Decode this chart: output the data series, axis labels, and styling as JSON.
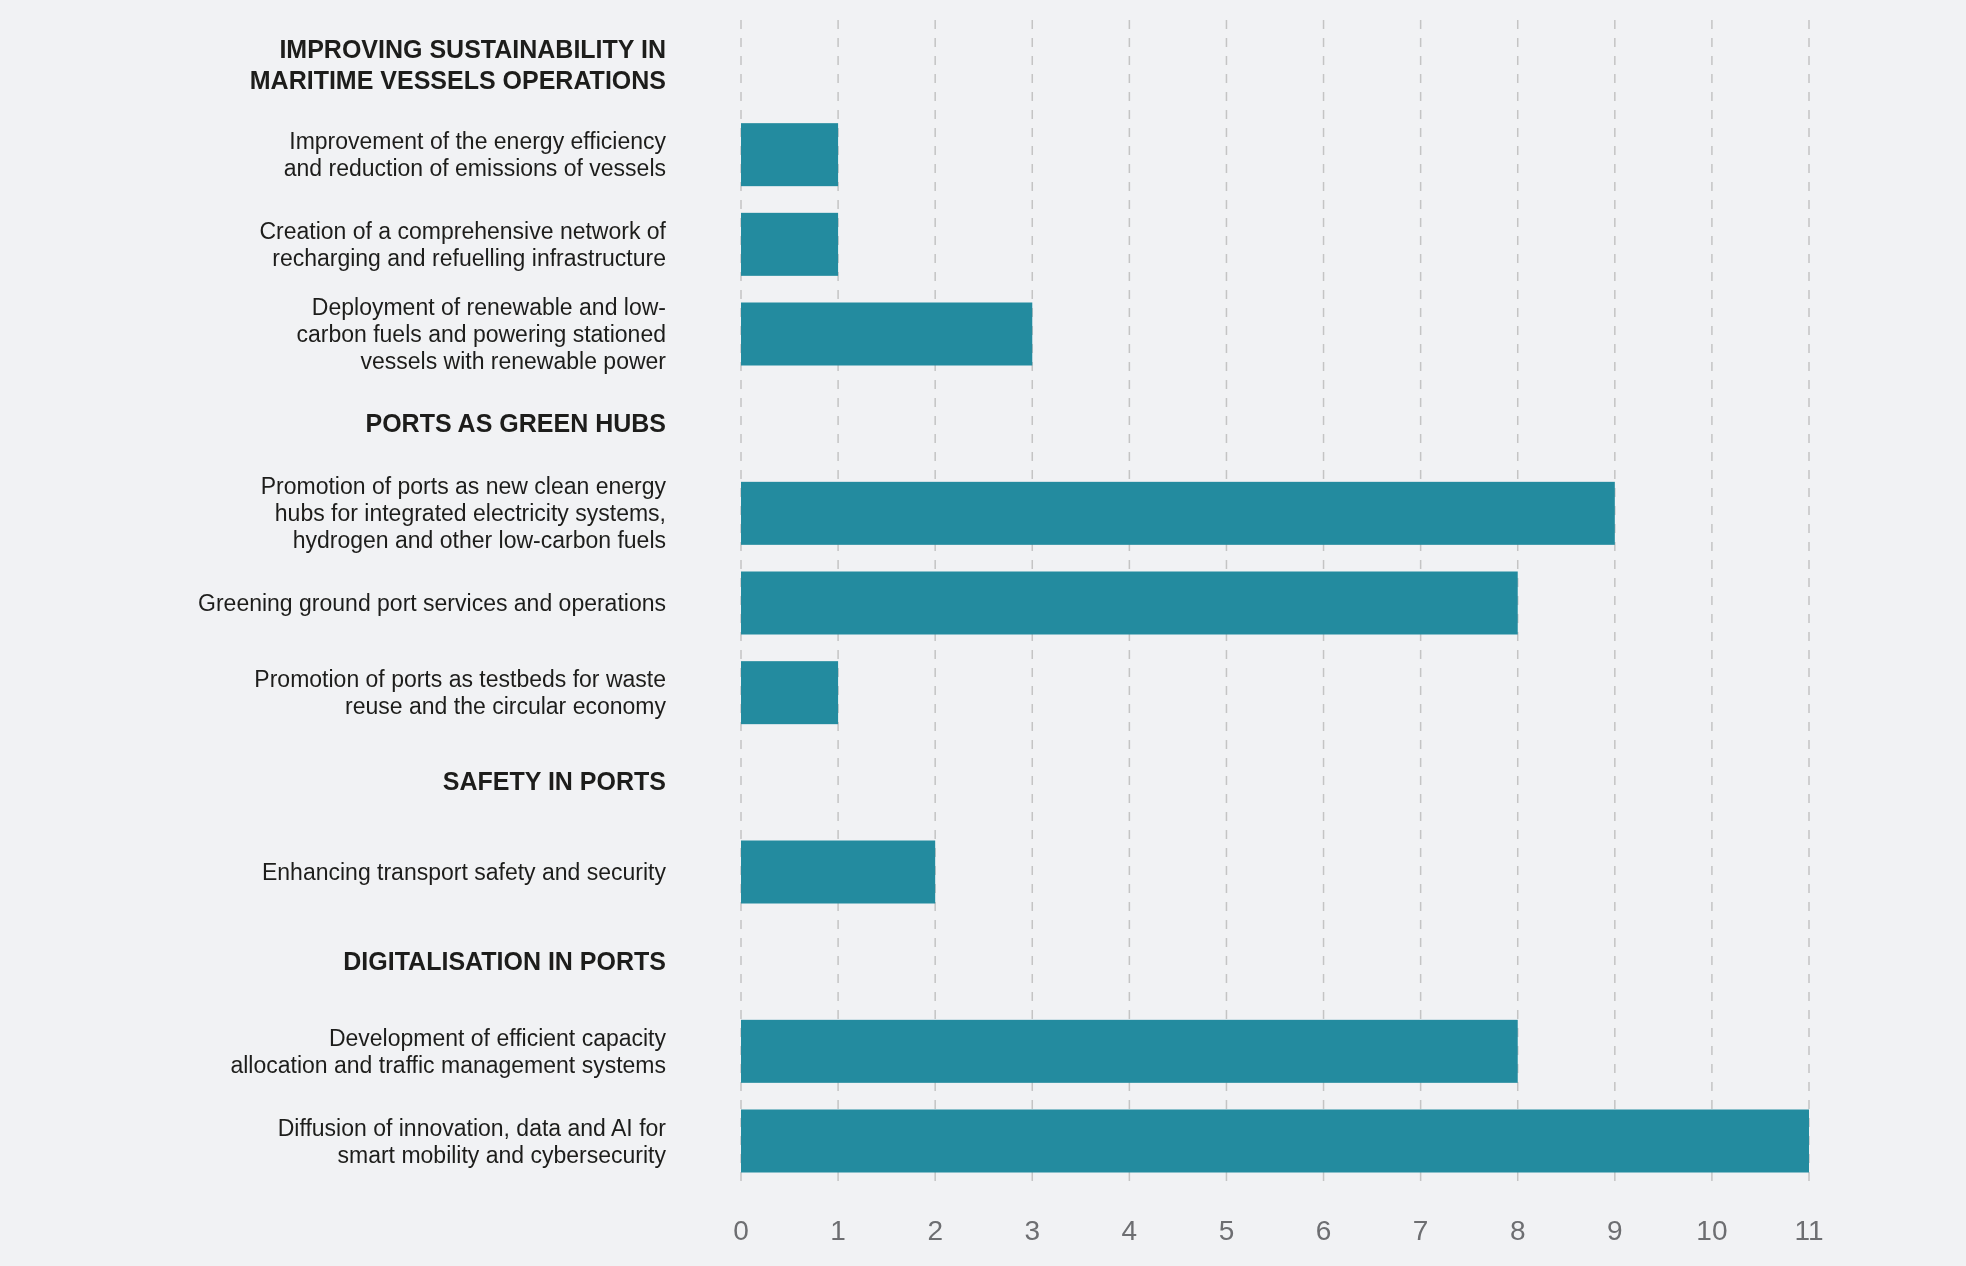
{
  "chart_data": {
    "type": "bar",
    "orientation": "horizontal",
    "categories": [
      "IMPROVING SUSTAINABILITY IN\nMARITIME VESSELS OPERATIONS",
      "Improvement of the energy efficiency\nand reduction of emissions of vessels",
      "Creation of a comprehensive network of\nrecharging and refuelling infrastructure",
      "Deployment of renewable and low-\ncarbon fuels and powering stationed\nvessels with renewable power",
      "PORTS AS GREEN HUBS",
      "Promotion of ports as new clean energy\nhubs for integrated electricity systems,\nhydrogen and other low-carbon fuels",
      "Greening ground port services and operations",
      "Promotion of ports as testbeds for waste\nreuse and the circular economy",
      "SAFETY IN PORTS",
      "Enhancing transport safety and security",
      "DIGITALISATION IN PORTS",
      "Development of efficient capacity\nallocation and traffic management systems",
      "Diffusion of innovation, data and AI for\nsmart mobility and cybersecurity"
    ],
    "values": [
      null,
      1,
      1,
      3,
      null,
      9,
      8,
      1,
      null,
      2,
      null,
      8,
      11
    ],
    "color": "#238b9f",
    "xlim": [
      0,
      11
    ],
    "xticks": [
      0,
      1,
      2,
      3,
      4,
      5,
      6,
      7,
      8,
      9,
      10,
      11
    ],
    "grid": "x",
    "line_style": "dashed"
  }
}
